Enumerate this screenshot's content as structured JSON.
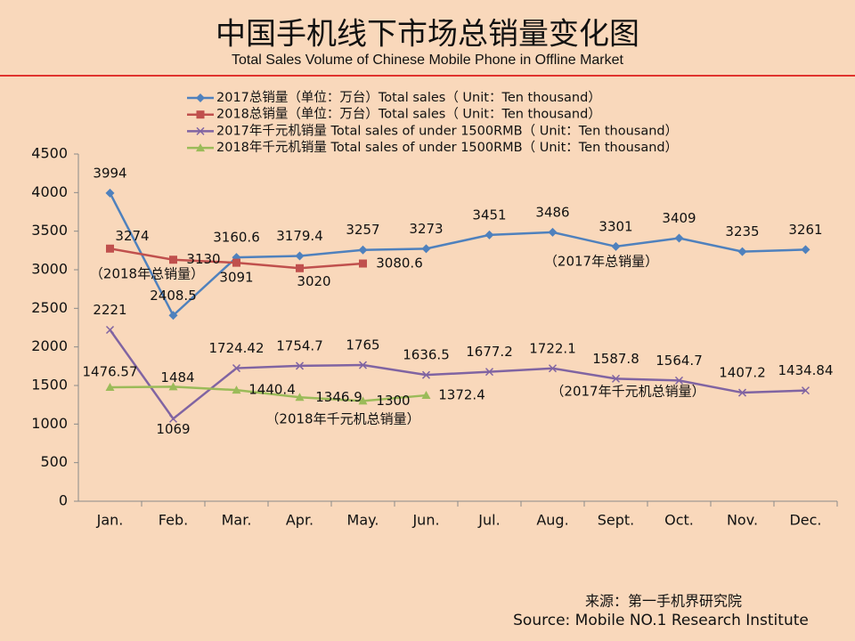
{
  "chart_data": {
    "type": "line",
    "title": "中国手机线下市场总销量变化图",
    "subtitle": "Total Sales Volume of Chinese Mobile Phone in Offline Market",
    "categories": [
      "Jan.",
      "Feb.",
      "Mar.",
      "Apr.",
      "May.",
      "Jun.",
      "Jul.",
      "Aug.",
      "Sept.",
      "Oct.",
      "Nov.",
      "Dec."
    ],
    "series": [
      {
        "name": "2017总销量（单位：万台）Total sales（ Unit：Ten thousand）",
        "color": "#4f81bd",
        "marker": "diamond",
        "values": [
          3994,
          2408.5,
          3160.6,
          3179.4,
          3257,
          3273,
          3451,
          3486,
          3301,
          3409,
          3235,
          3261
        ]
      },
      {
        "name": "2018总销量（单位：万台）Total sales（ Unit：Ten thousand）",
        "color": "#c0504d",
        "marker": "square",
        "values": [
          3274,
          3130,
          3091,
          3020,
          3080.6,
          null,
          null,
          null,
          null,
          null,
          null,
          null
        ]
      },
      {
        "name": "2017年千元机销量 Total sales of under 1500RMB（ Unit：Ten thousand）",
        "color": "#8064a2",
        "marker": "x",
        "values": [
          2221,
          1069,
          1724.42,
          1754.7,
          1765,
          1636.5,
          1677.2,
          1722.1,
          1587.8,
          1564.7,
          1407.2,
          1434.84
        ]
      },
      {
        "name": "2018年千元机销量 Total sales of under 1500RMB（ Unit：Ten thousand）",
        "color": "#9bbb59",
        "marker": "triangle",
        "values": [
          1476.57,
          1484,
          1440.4,
          1346.9,
          1300,
          1372.4,
          null,
          null,
          null,
          null,
          null,
          null
        ]
      }
    ],
    "ylim": [
      0,
      4500
    ],
    "yticks": [
      0,
      500,
      1000,
      1500,
      2000,
      2500,
      3000,
      3500,
      4000,
      4500
    ],
    "grid": false,
    "legend": "top",
    "annotations": [
      "（2018年总销量）",
      "（2017年总销量）",
      "（2017年千元机总销量）",
      "（2018年千元机总销量）"
    ],
    "source": [
      "来源：第一手机界研究院",
      "Source: Mobile NO.1 Research Institute"
    ]
  }
}
